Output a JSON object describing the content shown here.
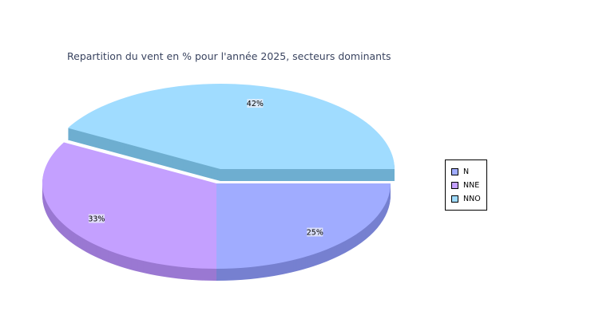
{
  "chart_data": {
    "type": "pie",
    "style": "3d-exploded",
    "title": "Repartition du vent en % pour l'année 2025, secteurs dominants",
    "slices": [
      {
        "name": "N",
        "value": 25,
        "label": "25%",
        "color": "#a0acff",
        "side_color": "#7680d0"
      },
      {
        "name": "NNE",
        "value": 33,
        "label": "33%",
        "color": "#c4a0ff",
        "side_color": "#9a78d2"
      },
      {
        "name": "NNO",
        "value": 42,
        "label": "42%",
        "color": "#a0dcff",
        "side_color": "#6eaed0",
        "exploded": true
      }
    ],
    "legend_position": "right"
  }
}
